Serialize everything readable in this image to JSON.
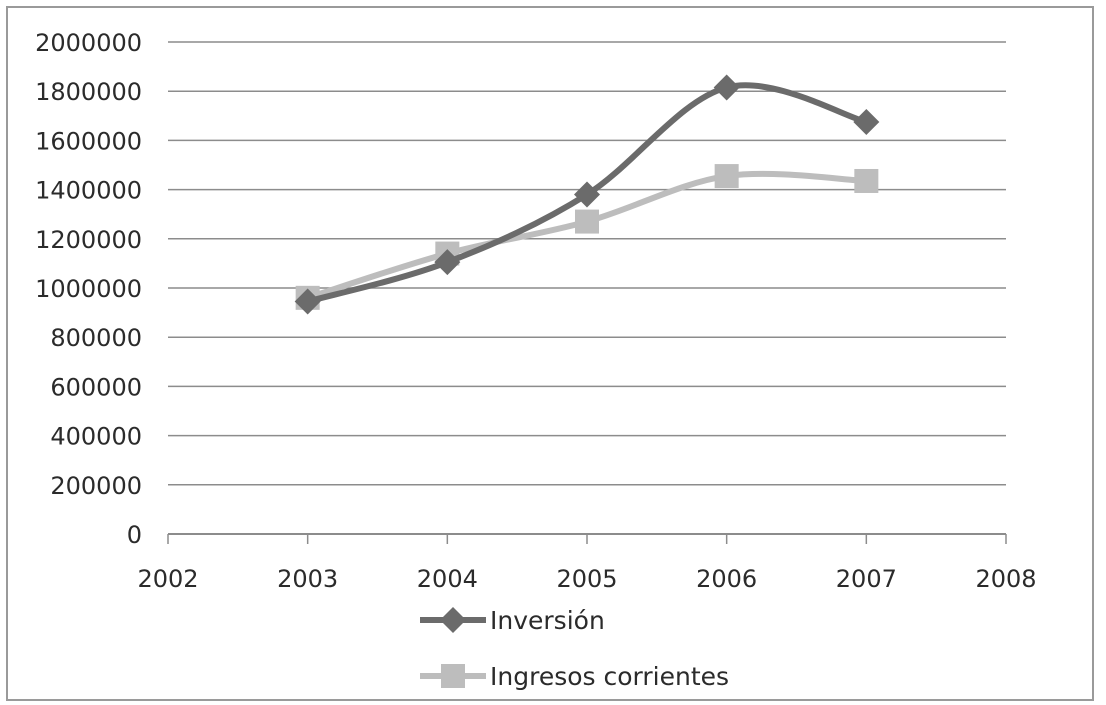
{
  "chart_data": {
    "type": "line",
    "x": [
      2003,
      2004,
      2005,
      2006,
      2007
    ],
    "series": [
      {
        "name": "Inversión",
        "values": [
          945000,
          1105000,
          1380000,
          1815000,
          1675000
        ],
        "color": "#6b6b6b",
        "marker": "diamond"
      },
      {
        "name": "Ingresos corrientes",
        "values": [
          960000,
          1140000,
          1270000,
          1455000,
          1435000
        ],
        "color": "#bdbdbd",
        "marker": "square"
      }
    ],
    "xlim": [
      2002,
      2008
    ],
    "ylim": [
      0,
      2000000
    ],
    "xticks": [
      "2002",
      "2003",
      "2004",
      "2005",
      "2006",
      "2007",
      "2008"
    ],
    "yticks": [
      "0",
      "200000",
      "400000",
      "600000",
      "800000",
      "1000000",
      "1200000",
      "1400000",
      "1600000",
      "1800000",
      "2000000"
    ],
    "grid": "horizontal",
    "legend": "bottom",
    "smooth": true
  }
}
